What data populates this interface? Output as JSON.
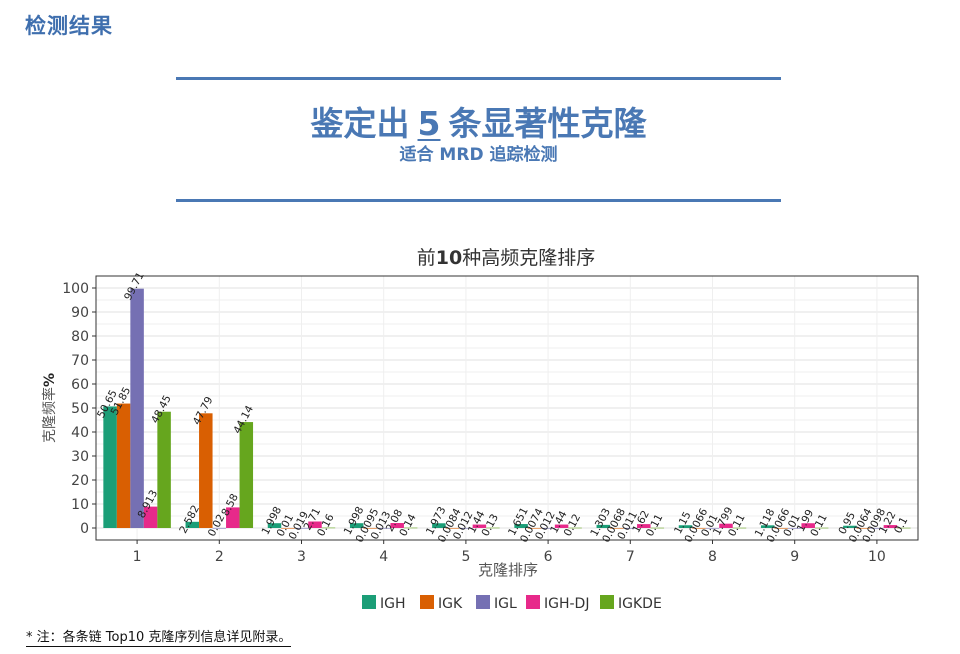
{
  "page": {
    "section_title": "检测结果",
    "headline_pre": "鉴定出",
    "headline_num": "5",
    "headline_post": "条显著性克隆",
    "subline": "适合 MRD 追踪检测",
    "footnote": "* 注：各条链 Top10 克隆序列信息详见附录。"
  },
  "colors": {
    "accent": "#4a78b4",
    "IGH": "#1b9e77",
    "IGK": "#d95f02",
    "IGL": "#7570b3",
    "IGH-DJ": "#e7298a",
    "IGKDE": "#66a61e"
  },
  "chart_data": {
    "type": "bar",
    "title_pre": "前",
    "title_bold": "10",
    "title_post": "种高频克隆排序",
    "xlabel": "克隆排序",
    "ylabel_pre": "克隆频率",
    "ylabel_bold": "%",
    "categories": [
      "1",
      "2",
      "3",
      "4",
      "5",
      "6",
      "7",
      "8",
      "9",
      "10"
    ],
    "ylim": [
      -5,
      105
    ],
    "yticks": [
      0,
      10,
      20,
      30,
      40,
      50,
      60,
      70,
      80,
      90,
      100
    ],
    "grid": true,
    "legend_position": "bottom",
    "series": [
      {
        "name": "IGH",
        "values": [
          50.65,
          2.582,
          1.998,
          1.998,
          1.973,
          1.651,
          1.303,
          1.15,
          1.118,
          0.95
        ],
        "labels": [
          "50.65",
          "2.582",
          "1.998",
          "1.998",
          "1.973",
          "1.651",
          "1.303",
          "1.15",
          "1.118",
          "0.95"
        ]
      },
      {
        "name": "IGK",
        "values": [
          51.85,
          47.79,
          0.01,
          0.0095,
          0.0084,
          0.0074,
          0.0068,
          0.0066,
          0.0066,
          0.0064
        ],
        "labels": [
          "51.85",
          "47.79",
          "0.01",
          "0.0095",
          "0.0084",
          "0.0074",
          "0.0068",
          "0.0066",
          "0.0066",
          "0.0064"
        ]
      },
      {
        "name": "IGL",
        "values": [
          99.71,
          0.02,
          0.019,
          0.013,
          0.012,
          0.012,
          0.011,
          0.01,
          0.01,
          0.0098
        ],
        "labels": [
          "99.71",
          "0.02",
          "0.019",
          "0.013",
          "0.012",
          "0.012",
          "0.011",
          "0.01",
          "0.01",
          "0.0098"
        ]
      },
      {
        "name": "IGH-DJ",
        "values": [
          8.913,
          8.58,
          2.71,
          2.08,
          1.44,
          1.44,
          1.62,
          1.799,
          1.99,
          1.22
        ],
        "labels": [
          "8.913",
          "8.58",
          "2.71",
          "2.08",
          "1.44",
          "1.44",
          "1.62",
          "1.799",
          "1.99",
          "1.22"
        ]
      },
      {
        "name": "IGKDE",
        "values": [
          48.45,
          44.14,
          0.16,
          0.14,
          0.13,
          0.12,
          0.11,
          0.11,
          0.11,
          0.1
        ],
        "labels": [
          "48.45",
          "44.14",
          "0.16",
          "0.14",
          "0.13",
          "0.12",
          "0.11",
          "0.11",
          "0.11",
          "0.1"
        ]
      }
    ]
  }
}
